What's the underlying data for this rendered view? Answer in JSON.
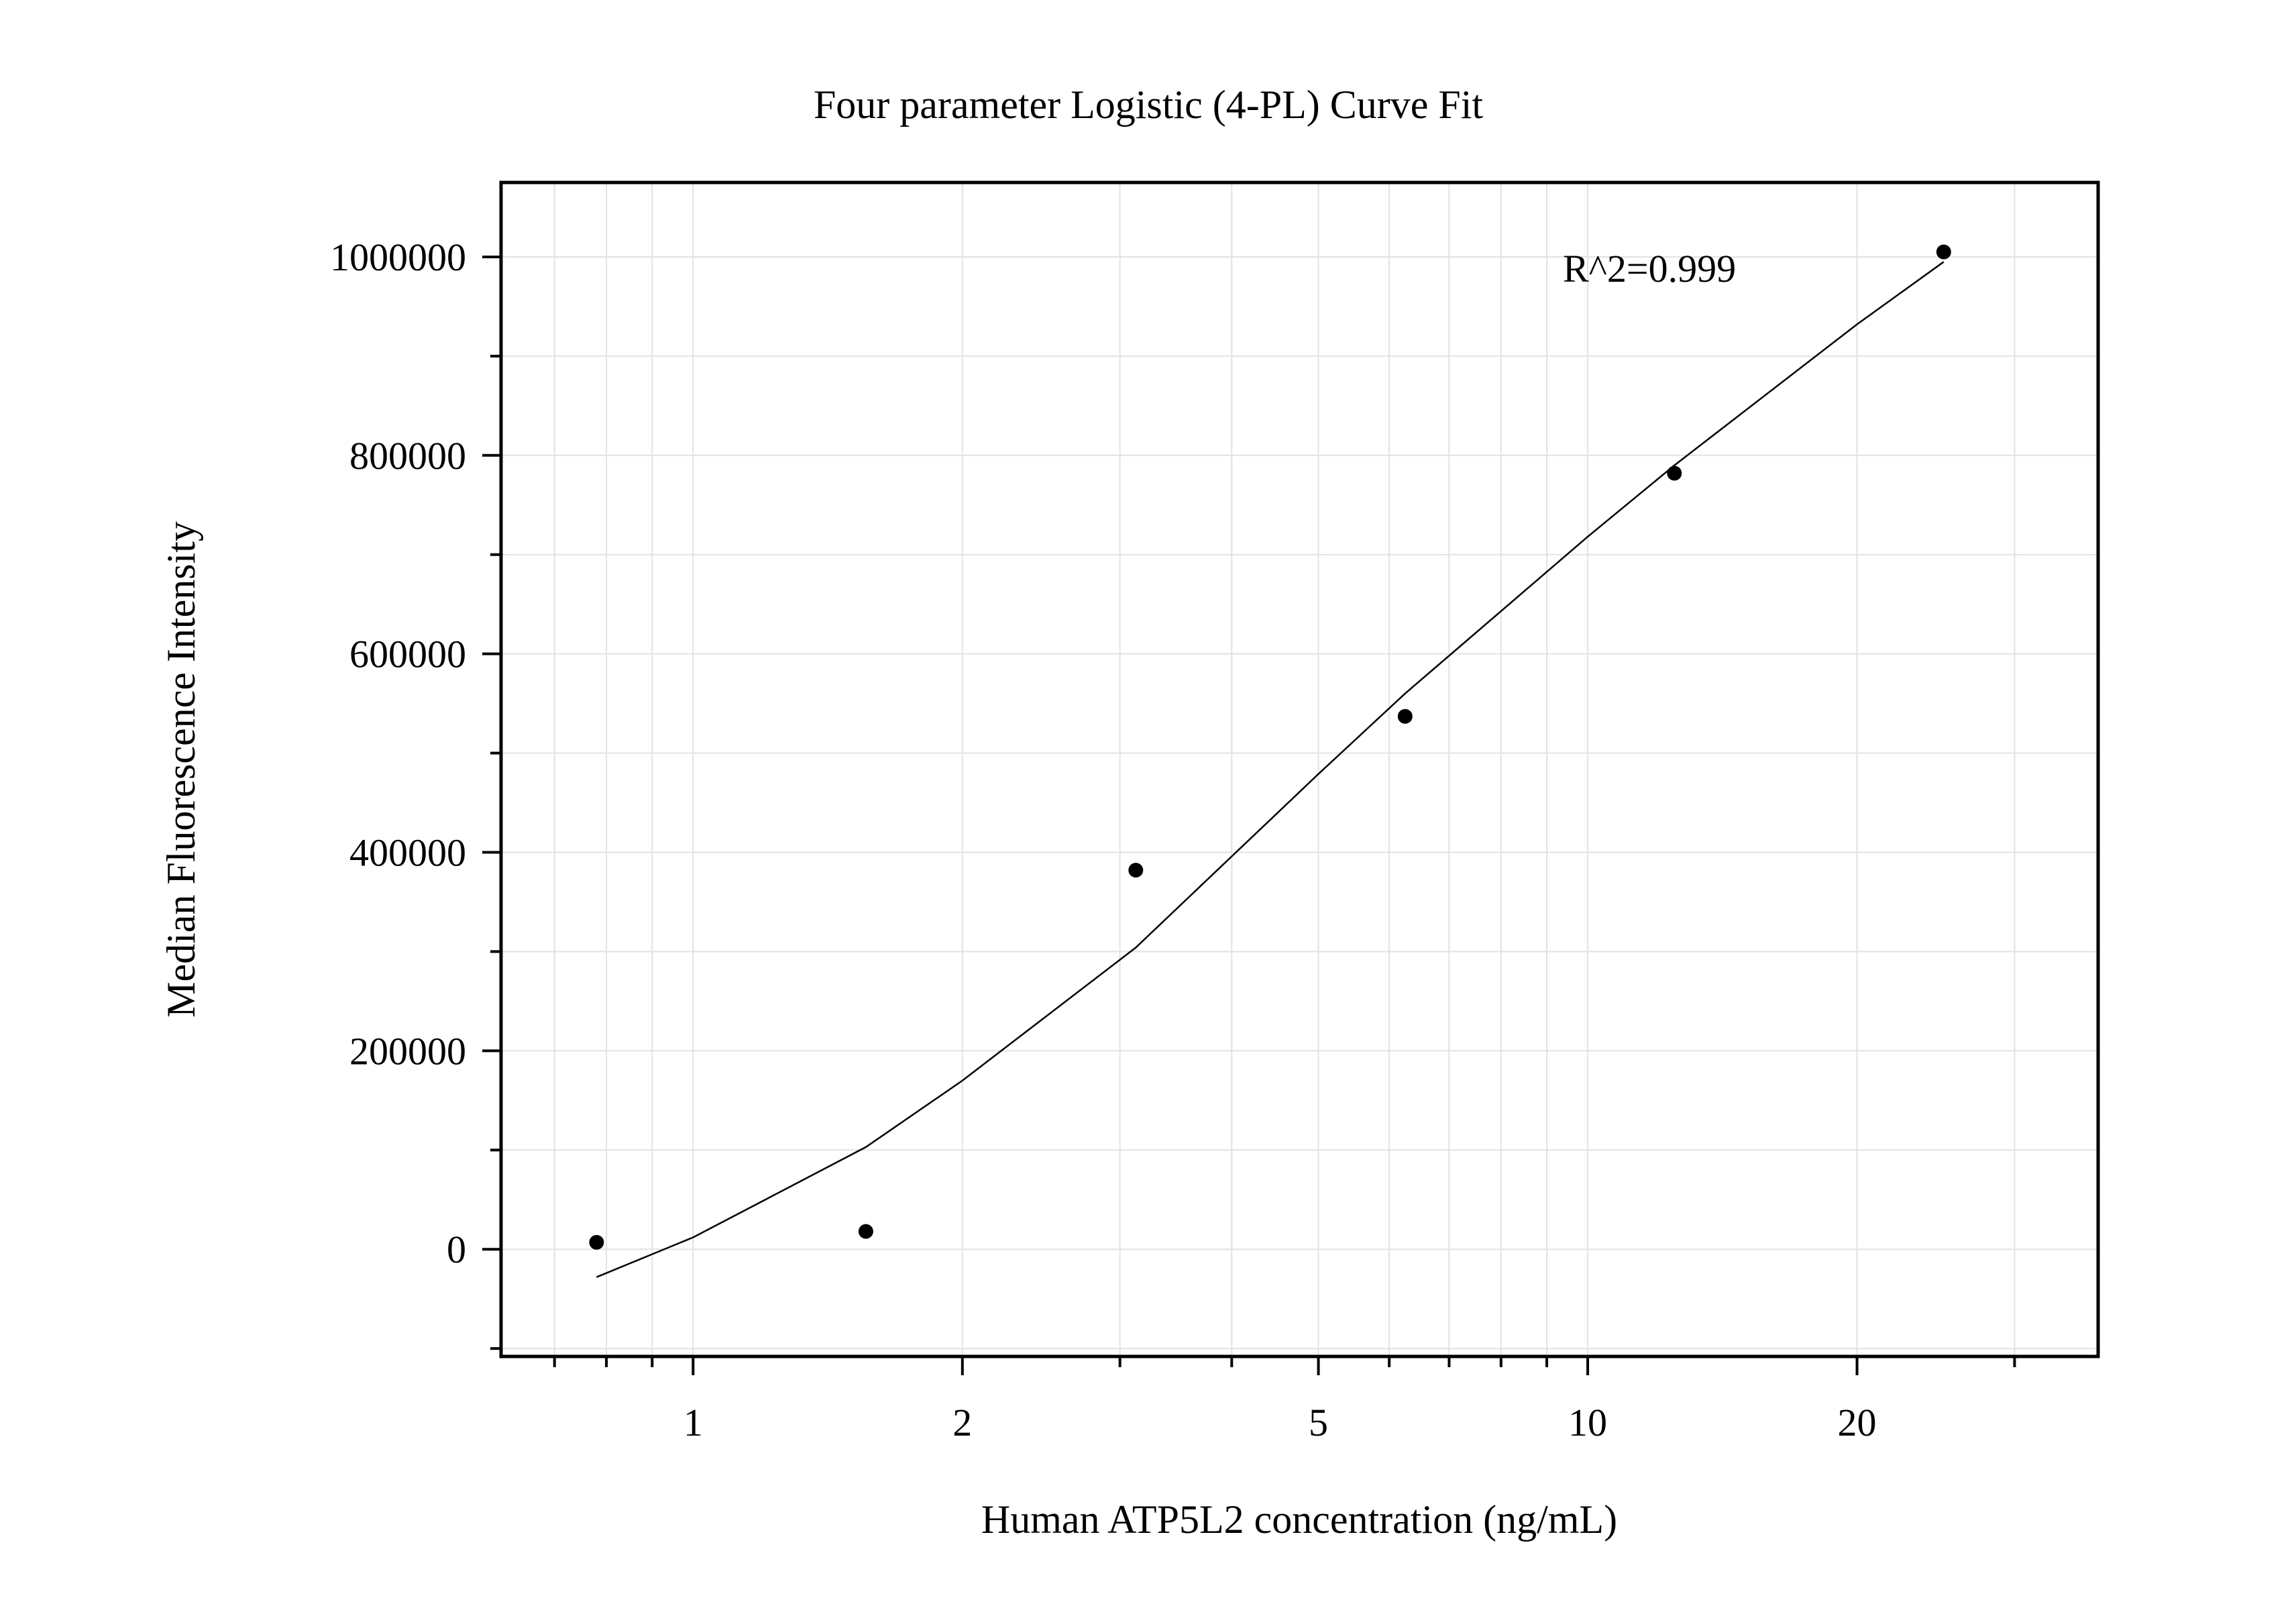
{
  "chart_data": {
    "type": "scatter",
    "title": "Four parameter Logistic (4-PL) Curve Fit",
    "xlabel": "Human ATP5L2 concentration (ng/mL)",
    "ylabel": "Median Fluorescence Intensity",
    "x_scale": "log",
    "xlim": [
      0.61,
      37.2
    ],
    "ylim": [
      -108000,
      1075000
    ],
    "x_ticks": [
      1,
      2,
      5,
      10,
      20
    ],
    "x_tick_labels": [
      "1",
      "2",
      "5",
      "10",
      "20"
    ],
    "y_ticks": [
      0,
      200000,
      400000,
      600000,
      800000,
      1000000
    ],
    "y_tick_labels": [
      "0",
      "200000",
      "400000",
      "600000",
      "800000",
      "1000000"
    ],
    "grid": true,
    "annotation": "R^2=0.999",
    "series": [
      {
        "name": "Standards",
        "kind": "points",
        "x": [
          0.78,
          1.56,
          3.125,
          6.25,
          12.5,
          25
        ],
        "y": [
          7000,
          18000,
          382000,
          537000,
          782000,
          1005000
        ]
      },
      {
        "name": "4-PL fit",
        "kind": "curve",
        "x": [
          0.78,
          1.0,
          1.56,
          2.0,
          3.125,
          5.0,
          6.25,
          10.0,
          12.5,
          20.0,
          25.0
        ],
        "y": [
          -28000,
          12000,
          103000,
          170000,
          304000,
          479000,
          560000,
          718000,
          790000,
          932000,
          995000
        ]
      }
    ]
  }
}
